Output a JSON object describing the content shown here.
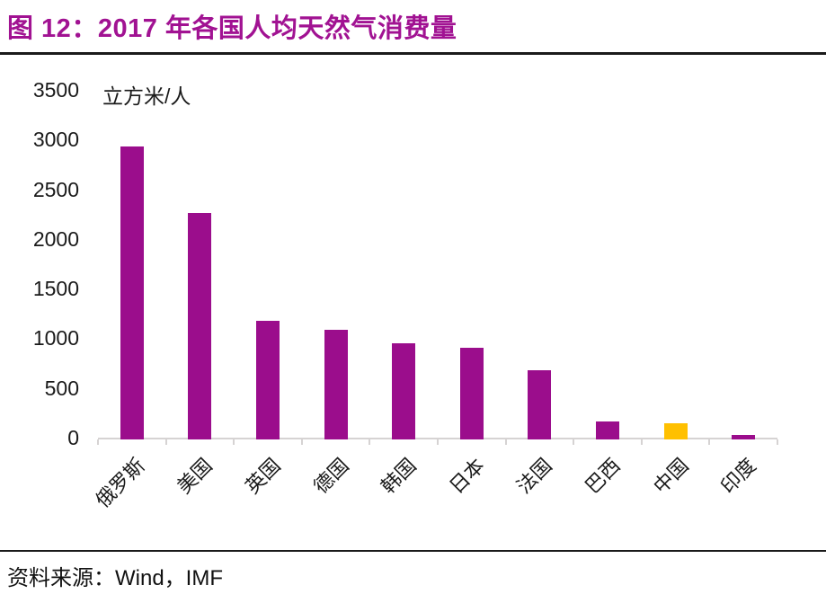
{
  "header": {
    "title": "图 12：2017 年各国人均天然气消费量",
    "title_color": "#A11292",
    "rule_color": "#1a1a1a"
  },
  "footer": {
    "source": "资料来源：Wind，IMF",
    "rule_color": "#1a1a1a"
  },
  "chart_data": {
    "type": "bar",
    "title": "2017 年各国人均天然气消费量",
    "ylabel": "立方米/人",
    "xlabel": "",
    "categories": [
      "俄罗斯",
      "美国",
      "英国",
      "德国",
      "韩国",
      "日本",
      "法国",
      "巴西",
      "中国",
      "印度"
    ],
    "category_slugs": [
      "russia",
      "usa",
      "uk",
      "germany",
      "south-korea",
      "japan",
      "france",
      "brazil",
      "china",
      "india"
    ],
    "values": [
      2950,
      2280,
      1190,
      1100,
      965,
      925,
      695,
      185,
      160,
      45
    ],
    "yticks": [
      0,
      500,
      1000,
      1500,
      2000,
      2500,
      3000,
      3500
    ],
    "ylim": [
      0,
      3500
    ],
    "grid": false,
    "legend": "none",
    "bar_color": "#9B0D8C",
    "highlight_index": 8,
    "highlight_color": "#FFC000",
    "axis_color": "#D6D3D3"
  }
}
